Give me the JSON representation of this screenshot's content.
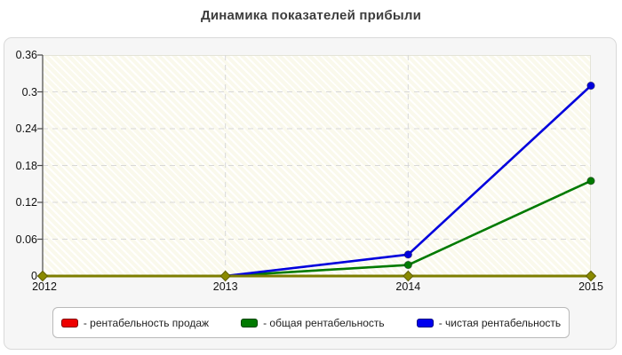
{
  "page": {
    "title": "Динамика показателей прибыли"
  },
  "chart_data": {
    "type": "line",
    "title": "Динамика показателей прибыли",
    "categories": [
      "2012",
      "2013",
      "2014",
      "2015"
    ],
    "series": [
      {
        "name": "рентабельность продаж",
        "color": "#ee0000",
        "values": [
          0,
          0,
          0,
          0
        ]
      },
      {
        "name": "общая рентабельность",
        "color": "#007a00",
        "values": [
          0,
          0,
          0.018,
          0.155
        ]
      },
      {
        "name": "чистая рентабельность",
        "color": "#0000dd",
        "values": [
          0,
          0,
          0.035,
          0.31
        ]
      }
    ],
    "ylim": [
      0,
      0.36
    ],
    "y_ticks": [
      "0",
      "0.06",
      "0.12",
      "0.18",
      "0.24",
      "0.3",
      "0.36"
    ],
    "grid": true,
    "legend_position": "bottom",
    "styles": {
      "grid_color": "#d8d8d8",
      "y_axis_color": "#4a4a4a",
      "baseline_color": "#7e7e00",
      "baseline_marker_fill": "#8a8a00",
      "baseline_marker_stroke": "#5f5f00",
      "plot_bg": "#faf9ec"
    }
  },
  "legend": {
    "items": [
      {
        "label": "- рентабельность продаж",
        "color": "#ee0000"
      },
      {
        "label": "- общая рентабельность",
        "color": "#007a00"
      },
      {
        "label": "- чистая рентабельность",
        "color": "#0000ee"
      }
    ]
  }
}
